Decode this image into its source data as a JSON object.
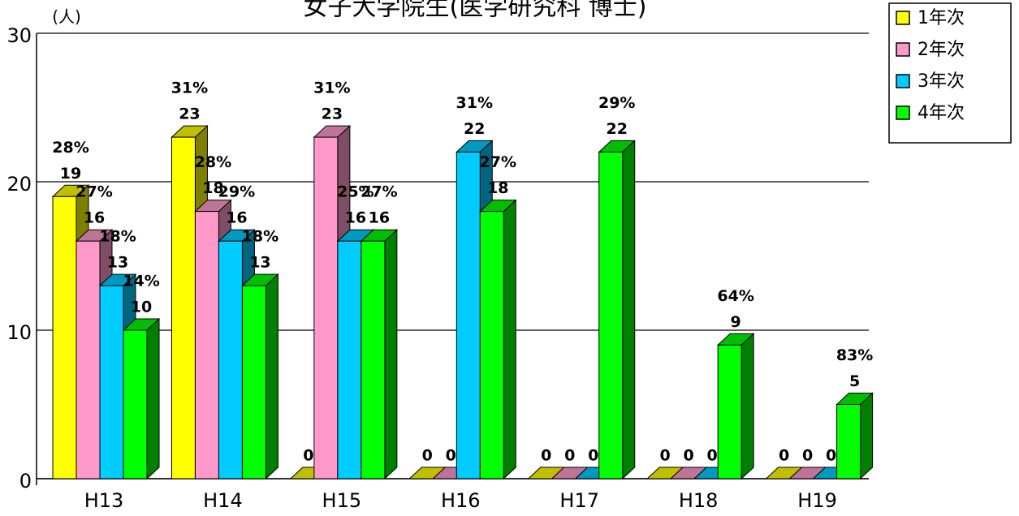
{
  "chart_data": {
    "type": "bar3d",
    "title": "女子大学院生(医学研究科 博士)",
    "y_unit": "(人)",
    "categories": [
      "H13",
      "H14",
      "H15",
      "H16",
      "H17",
      "H18",
      "H19"
    ],
    "series": [
      {
        "name": "1年次",
        "color": "#ffff00",
        "values": [
          19,
          23,
          0,
          0,
          0,
          0,
          0
        ],
        "percent_labels": [
          "28%",
          "31%",
          null,
          null,
          null,
          null,
          null
        ]
      },
      {
        "name": "2年次",
        "color": "#ff99cc",
        "values": [
          16,
          18,
          23,
          0,
          0,
          0,
          0
        ],
        "percent_labels": [
          "27%",
          "28%",
          "31%",
          null,
          null,
          null,
          null
        ]
      },
      {
        "name": "3年次",
        "color": "#00ccff",
        "values": [
          13,
          16,
          16,
          22,
          0,
          0,
          0
        ],
        "percent_labels": [
          "18%",
          "29%",
          "25%",
          "31%",
          null,
          null,
          null
        ]
      },
      {
        "name": "4年次",
        "color": "#00ff00",
        "values": [
          10,
          13,
          16,
          18,
          22,
          9,
          5
        ],
        "percent_labels": [
          "14%",
          "18%",
          "27%",
          "27%",
          "29%",
          "64%",
          "83%"
        ]
      }
    ],
    "ylim": [
      0,
      30
    ],
    "yticks": [
      0,
      10,
      20,
      30
    ],
    "grid": true,
    "legend": "right"
  }
}
